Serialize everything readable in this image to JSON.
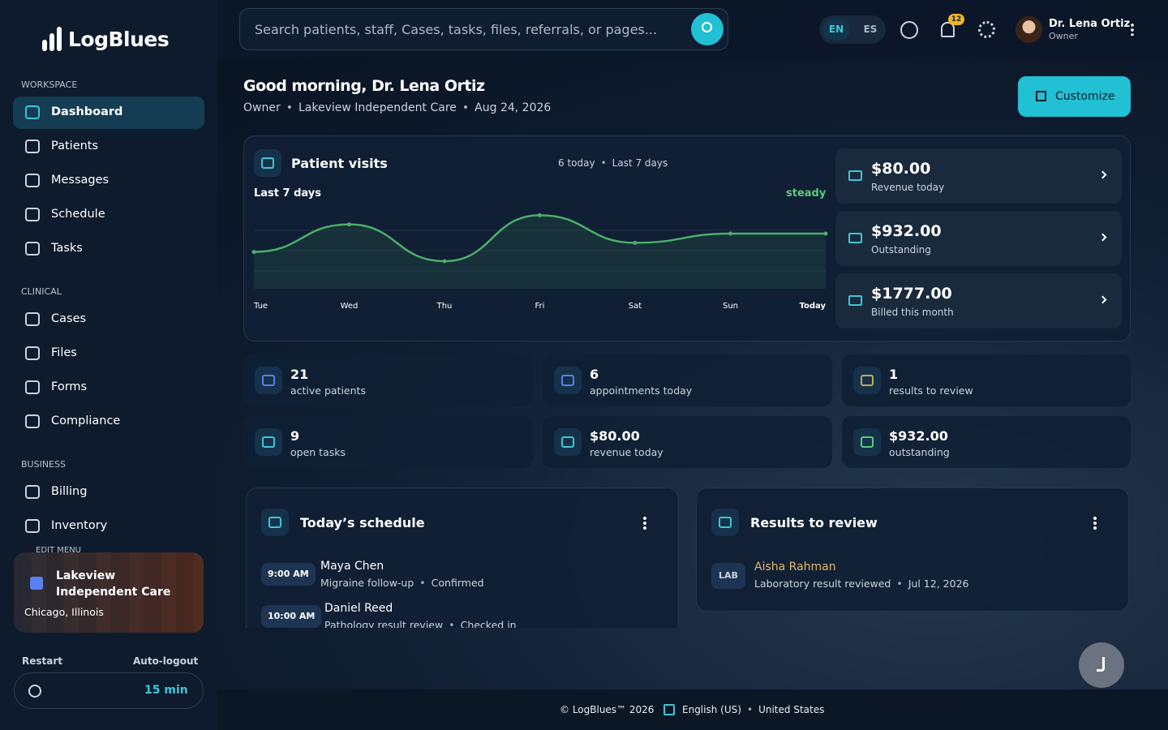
{
  "brand": "LogBlues",
  "search_placeholder": "Search patients, staff, Cases, tasks, files, referrals, or pages...",
  "languages": [
    "EN",
    "ES"
  ],
  "notification_count": "12",
  "user": {
    "name": "Dr. Lena Ortiz",
    "role": "Owner"
  },
  "sidebar": {
    "sections": [
      {
        "title": "WORKSPACE",
        "items": [
          "Dashboard",
          "Patients",
          "Messages",
          "Schedule",
          "Tasks"
        ]
      },
      {
        "title": "CLINICAL",
        "items": [
          "Cases",
          "Files",
          "Forms",
          "Compliance"
        ]
      },
      {
        "title": "BUSINESS",
        "items": [
          "Billing",
          "Inventory"
        ]
      }
    ],
    "edit_menu": "EDIT MENU",
    "location": {
      "name": "Lakeview Independent Care",
      "city": "Chicago, Illinois"
    },
    "restart": "Restart",
    "auto_logout": "Auto-logout",
    "timeout": "15 min"
  },
  "greeting": "Good morning, Dr. Lena Ortiz",
  "subtitle": [
    "Owner",
    "Lakeview Independent Care",
    "Aug 24, 2026"
  ],
  "customize": "Customize",
  "visits": {
    "title": "Patient visits",
    "meta": [
      "6 today",
      "Last 7 days"
    ],
    "period": "Last 7 days",
    "trend": "steady"
  },
  "chart_data": {
    "type": "line",
    "categories": [
      "Tue",
      "Wed",
      "Thu",
      "Fri",
      "Sat",
      "Sun",
      "Today"
    ],
    "values": [
      4,
      7,
      3,
      8,
      5,
      6,
      6
    ],
    "ylim": [
      0,
      9
    ],
    "color": "#4caf6a"
  },
  "money_cards": [
    {
      "value": "$80.00",
      "label": "Revenue today"
    },
    {
      "value": "$932.00",
      "label": "Outstanding"
    },
    {
      "value": "$1777.00",
      "label": "Billed this month"
    }
  ],
  "stats": [
    {
      "value": "21",
      "label": "active patients"
    },
    {
      "value": "6",
      "label": "appointments today"
    },
    {
      "value": "1",
      "label": "results to review"
    },
    {
      "value": "9",
      "label": "open tasks"
    },
    {
      "value": "$80.00",
      "label": "revenue today"
    },
    {
      "value": "$932.00",
      "label": "outstanding"
    }
  ],
  "schedule": {
    "title": "Today’s schedule",
    "items": [
      {
        "time": "9:00 AM",
        "name": "Maya Chen",
        "details": [
          "Migraine follow-up",
          "Confirmed"
        ]
      },
      {
        "time": "10:00 AM",
        "name": "Daniel Reed",
        "details": [
          "Pathology result review",
          "Checked in"
        ]
      }
    ]
  },
  "results": {
    "title": "Results to review",
    "items": [
      {
        "tag": "LAB",
        "name": "Aisha Rahman",
        "details": [
          "Laboratory result reviewed",
          "Jul 12, 2026"
        ]
      }
    ]
  },
  "footer": {
    "copyright": "© LogBlues™ 2026",
    "language": "English (US)",
    "region": "United States"
  }
}
